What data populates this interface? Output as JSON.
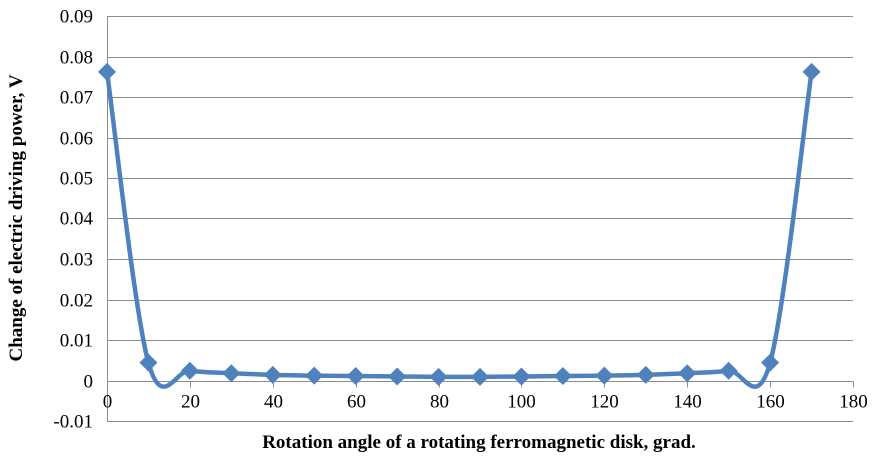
{
  "chart_data": {
    "type": "line",
    "title": "",
    "xlabel": "Rotation angle of a rotating ferromagnetic disk, grad.",
    "ylabel": "Change of electric driving power, V",
    "xlim": [
      0,
      180
    ],
    "ylim": [
      -0.01,
      0.09
    ],
    "x_ticks": [
      0,
      20,
      40,
      60,
      80,
      100,
      120,
      140,
      160,
      180
    ],
    "y_ticks": [
      -0.01,
      0,
      0.01,
      0.02,
      0.03,
      0.04,
      0.05,
      0.06,
      0.07,
      0.08,
      0.09
    ],
    "x_tick_labels": [
      "0",
      "20",
      "40",
      "60",
      "80",
      "100",
      "120",
      "140",
      "160",
      "180"
    ],
    "y_tick_labels": [
      "-0.01",
      "0",
      "0.01",
      "0.02",
      "0.03",
      "0.04",
      "0.05",
      "0.06",
      "0.07",
      "0.08",
      "0.09"
    ],
    "grid": "horizontal",
    "legend": "none",
    "series": [
      {
        "color": "#4f81bd",
        "marker": "diamond",
        "smooth": true,
        "x": [
          0,
          10,
          20,
          30,
          40,
          50,
          60,
          70,
          80,
          90,
          100,
          110,
          120,
          130,
          140,
          150,
          160,
          170
        ],
        "y": [
          0.0762,
          0.0044,
          0.0024,
          0.0018,
          0.0014,
          0.0012,
          0.0011,
          0.001,
          0.0009,
          0.0009,
          0.001,
          0.0011,
          0.0012,
          0.0014,
          0.0018,
          0.0024,
          0.0044,
          0.0762
        ]
      }
    ]
  }
}
